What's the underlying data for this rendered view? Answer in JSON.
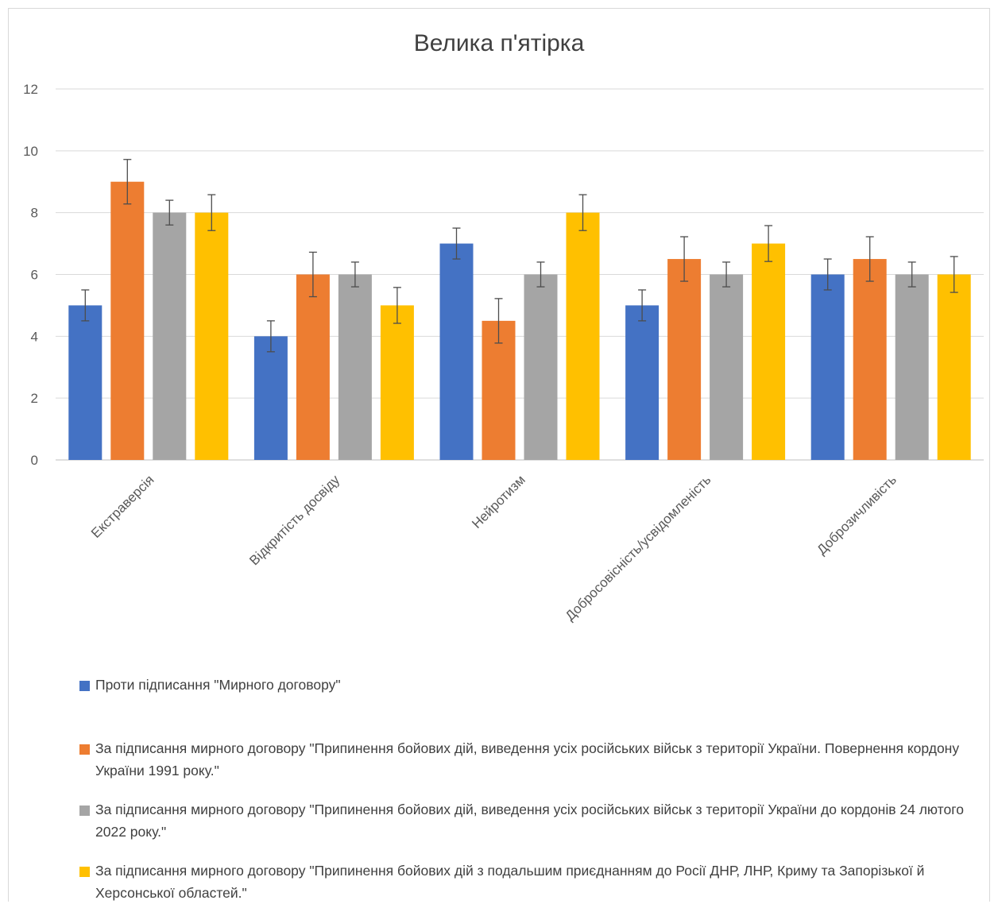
{
  "chart_data": {
    "type": "bar",
    "title": "Велика п'ятірка",
    "categories": [
      "Екстраверсія",
      "Відкритість досвіду",
      "Нейротизм",
      "Добросовісність/усвідомленість",
      "Доброзичливість"
    ],
    "ylim": [
      0,
      12
    ],
    "yticks": [
      0,
      2,
      4,
      6,
      8,
      10,
      12
    ],
    "grid": true,
    "legend_position": "bottom",
    "error_bars": true,
    "series": [
      {
        "name": "Проти підписання \"Мирного договору\"",
        "color": "#4472c4",
        "values": [
          5,
          4,
          7,
          5,
          6
        ],
        "errors": [
          0.5,
          0.5,
          0.5,
          0.5,
          0.5
        ]
      },
      {
        "name": "За підписання мирного договору \"Припинення бойових дій, виведення усіх російських військ з території України. Повернення кордону України 1991 року.\"",
        "color": "#ed7d31",
        "values": [
          9,
          6,
          4.5,
          6.5,
          6.5
        ],
        "errors": [
          0.72,
          0.72,
          0.72,
          0.72,
          0.72
        ]
      },
      {
        "name": "За підписання мирного договору \"Припинення бойових дій, виведення усіх російських військ з території України до кордонів 24 лютого 2022 року.\"",
        "color": "#a5a5a5",
        "values": [
          8,
          6,
          6,
          6,
          6
        ],
        "errors": [
          0.4,
          0.4,
          0.4,
          0.4,
          0.4
        ]
      },
      {
        "name": "За підписання мирного договору \"Припинення бойових дій з подальшим приєднанням до Росії ДНР, ЛНР, Криму та Запорізької й Херсонської областей.\"",
        "color": "#ffc000",
        "values": [
          8,
          5,
          8,
          7,
          6
        ],
        "errors": [
          0.58,
          0.58,
          0.58,
          0.58,
          0.58
        ]
      }
    ]
  }
}
